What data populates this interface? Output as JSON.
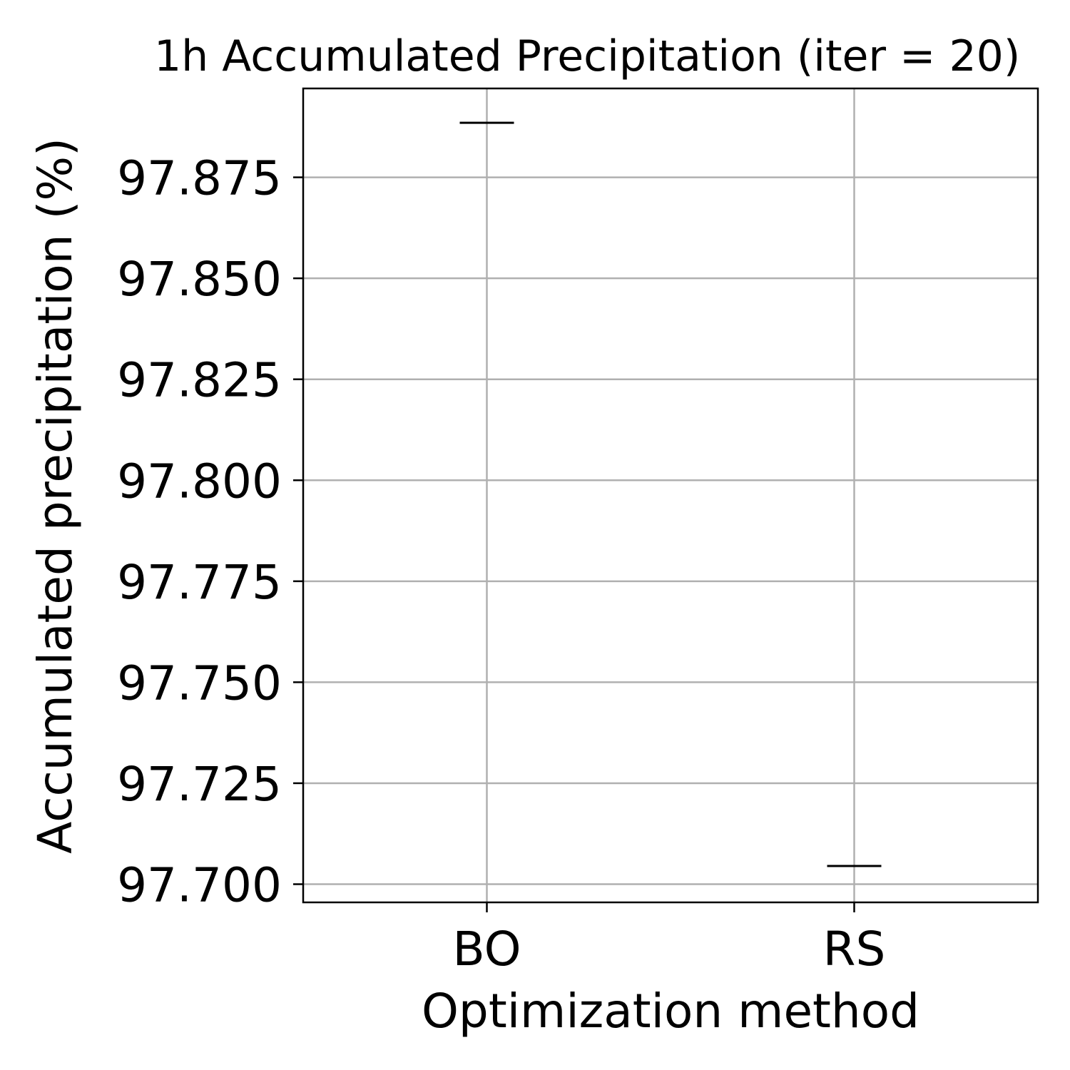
{
  "chart_data": {
    "type": "box",
    "title": "1h Accumulated Precipitation (iter = 20)",
    "xlabel": "Optimization method",
    "ylabel": "Accumulated precipitation (%)",
    "categories": [
      "BO",
      "RS"
    ],
    "values": [
      97.8885,
      97.7045
    ],
    "ylim": [
      97.6955,
      97.897
    ],
    "yticks": [
      97.7,
      97.725,
      97.75,
      97.775,
      97.8,
      97.825,
      97.85,
      97.875
    ],
    "ytick_labels": [
      "97.700",
      "97.725",
      "97.750",
      "97.775",
      "97.800",
      "97.825",
      "97.850",
      "97.875"
    ],
    "grid": true,
    "legend": "none",
    "colors": {
      "median": "#000000",
      "grid": "#b0b0b0",
      "frame": "#000000"
    }
  }
}
